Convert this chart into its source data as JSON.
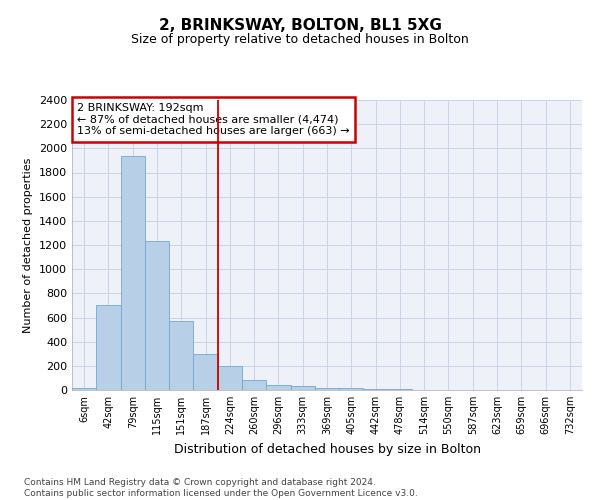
{
  "title1": "2, BRINKSWAY, BOLTON, BL1 5XG",
  "title2": "Size of property relative to detached houses in Bolton",
  "xlabel": "Distribution of detached houses by size in Bolton",
  "ylabel": "Number of detached properties",
  "annotation_line1": "2 BRINKSWAY: 192sqm",
  "annotation_line2": "← 87% of detached houses are smaller (4,474)",
  "annotation_line3": "13% of semi-detached houses are larger (663) →",
  "bar_color": "#b8cfe8",
  "bar_edge_color": "#6fa8d4",
  "vline_color": "#cc0000",
  "annotation_box_edgecolor": "#cc0000",
  "grid_color": "#c8d4e8",
  "background_color": "#eef2f8",
  "categories": [
    "6sqm",
    "42sqm",
    "79sqm",
    "115sqm",
    "151sqm",
    "187sqm",
    "224sqm",
    "260sqm",
    "296sqm",
    "333sqm",
    "369sqm",
    "405sqm",
    "442sqm",
    "478sqm",
    "514sqm",
    "550sqm",
    "587sqm",
    "623sqm",
    "659sqm",
    "696sqm",
    "732sqm"
  ],
  "values": [
    20,
    700,
    1940,
    1230,
    575,
    300,
    195,
    80,
    45,
    30,
    20,
    18,
    5,
    5,
    3,
    3,
    2,
    1,
    1,
    1,
    0
  ],
  "ylim": [
    0,
    2400
  ],
  "yticks": [
    0,
    200,
    400,
    600,
    800,
    1000,
    1200,
    1400,
    1600,
    1800,
    2000,
    2200,
    2400
  ],
  "vline_index": 5,
  "footer_line1": "Contains HM Land Registry data © Crown copyright and database right 2024.",
  "footer_line2": "Contains public sector information licensed under the Open Government Licence v3.0."
}
